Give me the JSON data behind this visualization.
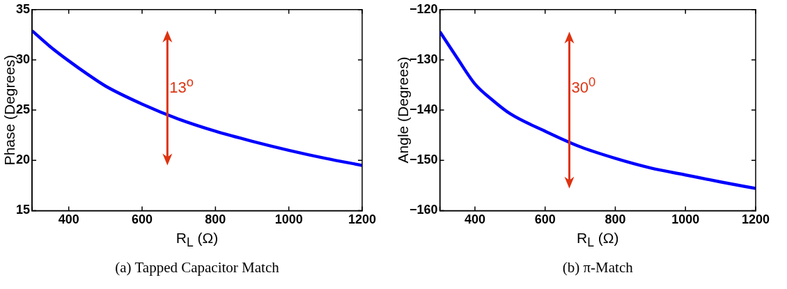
{
  "chart_data": [
    {
      "type": "line",
      "title": "(a) Tapped Capacitor Match",
      "xlabel": "R$_{L}$ (Ω)",
      "ylabel": "Phase (Degrees)",
      "x": [
        300,
        350,
        400,
        450,
        500,
        600,
        700,
        800,
        900,
        1000,
        1100,
        1200
      ],
      "series": [
        {
          "color": "#0000ff",
          "values": [
            32.9,
            31.3,
            29.9,
            28.6,
            27.4,
            25.6,
            24.1,
            22.9,
            21.9,
            21.0,
            20.2,
            19.5
          ]
        }
      ],
      "xlim": [
        300,
        1200
      ],
      "xticks": [
        {
          "value": 300,
          "label": null
        },
        400,
        600,
        800,
        1000,
        1200
      ],
      "ylim": [
        15,
        35
      ],
      "yticks": [
        15,
        20,
        25,
        30,
        35
      ],
      "grid": false,
      "legend": false,
      "marker": "none",
      "line_style": "solid",
      "annotations": [
        "13$^{o}$"
      ]
    },
    {
      "type": "line",
      "title": "(b) π-Match",
      "xlabel": "R$_{L}$ (Ω)",
      "ylabel": "Angle (Degrees)",
      "x": [
        300,
        350,
        400,
        450,
        500,
        600,
        700,
        800,
        900,
        1000,
        1100,
        1200
      ],
      "series": [
        {
          "color": "#0000ff",
          "values": [
            -124.4,
            -129.7,
            -134.8,
            -138.0,
            -140.7,
            -144.2,
            -147.3,
            -149.6,
            -151.5,
            -152.9,
            -154.3,
            -155.6
          ]
        }
      ],
      "xlim": [
        300,
        1200
      ],
      "xticks": [
        {
          "value": 300,
          "label": null
        },
        400,
        600,
        800,
        1000,
        1200
      ],
      "ylim": [
        -160,
        -120
      ],
      "yticks": [
        -160,
        -150,
        -140,
        -130,
        -120
      ],
      "grid": false,
      "legend": false,
      "marker": "none",
      "line_style": "solid",
      "annotations": [
        "30$^{0}$"
      ]
    }
  ]
}
